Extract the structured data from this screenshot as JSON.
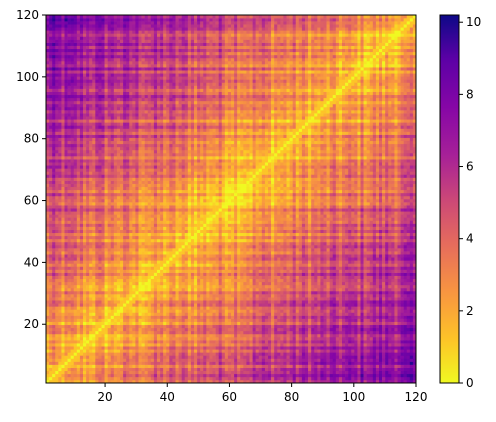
{
  "chart_data": {
    "type": "heatmap",
    "title": "",
    "xlabel": "",
    "ylabel": "",
    "xlim": [
      1,
      120
    ],
    "ylim": [
      1,
      120
    ],
    "x_ticks": [
      "20",
      "40",
      "60",
      "80",
      "100",
      "120"
    ],
    "y_ticks": [
      "20",
      "40",
      "60",
      "80",
      "100",
      "120"
    ],
    "grid": false,
    "colormap": "plasma (reversed)",
    "colorbar": {
      "min": 0,
      "max": 10.2,
      "ticks": [
        "0",
        "2",
        "4",
        "6",
        "8",
        "10"
      ]
    },
    "matrix_size": 120,
    "diagonal_value": 0,
    "description_values": {
      "corner_top_left_avg": 8.5,
      "corner_bottom_right_avg": 8.5,
      "center_band_avg": 3.0
    }
  }
}
